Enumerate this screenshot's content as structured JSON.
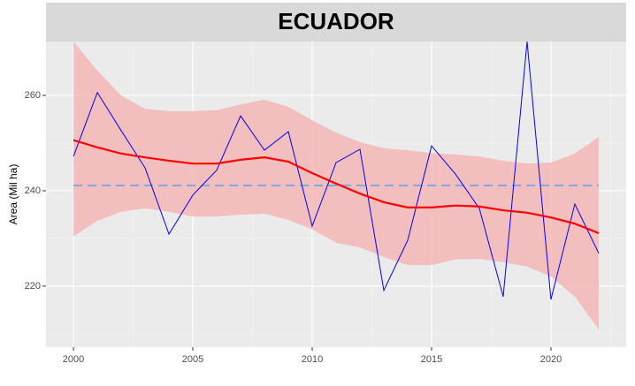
{
  "chart_data": {
    "type": "line",
    "title": "ECUADOR",
    "y_label": "Area (Mil ha)",
    "x": [
      2000,
      2001,
      2002,
      2003,
      2004,
      2005,
      2006,
      2007,
      2008,
      2009,
      2010,
      2011,
      2012,
      2013,
      2014,
      2015,
      2016,
      2017,
      2018,
      2019,
      2020,
      2021,
      2022
    ],
    "series": [
      {
        "color": "#0000ff",
        "values": [
          247.2,
          260.6,
          252.6,
          244.8,
          230.9,
          239.1,
          244.3,
          255.7,
          248.5,
          252.4,
          232.6,
          245.9,
          248.7,
          219.1,
          229.6,
          249.4,
          243.5,
          236.3,
          217.8,
          271.3,
          217.2,
          237.2,
          226.9
        ]
      }
    ],
    "smooth": {
      "color": "#ff0000",
      "values": [
        250.6,
        249.1,
        247.8,
        247.0,
        246.3,
        245.7,
        245.7,
        246.5,
        247.0,
        246.1,
        243.7,
        241.5,
        239.4,
        237.6,
        236.5,
        236.5,
        236.9,
        236.7,
        235.9,
        235.4,
        234.4,
        233.1,
        231.1
      ]
    },
    "band": {
      "color": "#f4b6b6",
      "upper": [
        271.3,
        265.2,
        260.0,
        257.2,
        256.7,
        256.7,
        256.9,
        258.1,
        259.1,
        257.6,
        254.8,
        252.2,
        250.2,
        248.9,
        248.5,
        247.9,
        247.6,
        247.2,
        246.3,
        245.7,
        245.9,
        247.8,
        251.3
      ],
      "lower": [
        230.4,
        233.7,
        235.6,
        236.3,
        235.6,
        234.6,
        234.6,
        235.0,
        235.2,
        233.9,
        231.9,
        229.1,
        228.1,
        226.1,
        224.4,
        224.4,
        225.6,
        225.7,
        225.0,
        224.1,
        222.0,
        217.8,
        210.9
      ]
    },
    "hline": {
      "value": 241.1,
      "color": "#7fa8e0"
    },
    "xlim": [
      1998.85,
      2023.15
    ],
    "ylim": [
      207.2,
      271.3
    ],
    "xticks": [
      2000,
      2005,
      2010,
      2015,
      2020
    ],
    "yticks": [
      220,
      240,
      260
    ],
    "xminor": [
      2002.5,
      2007.5,
      2012.5,
      2017.5,
      2022.5
    ],
    "yminor": [
      210,
      230,
      250,
      270
    ],
    "grid": true
  }
}
